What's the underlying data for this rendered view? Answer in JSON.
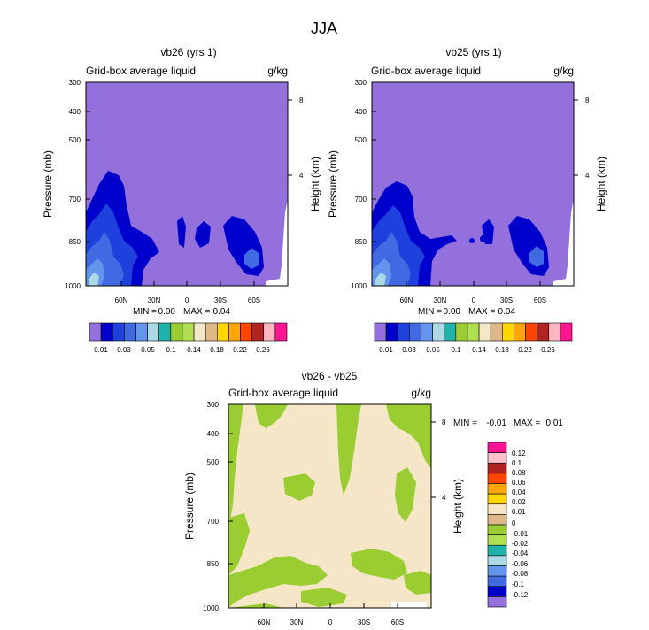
{
  "figure": {
    "title": "JJA"
  },
  "colors": {
    "fill_scale_panels": [
      "#9370DB",
      "#0000CD",
      "#1E41DD",
      "#4169E1",
      "#6495ED",
      "#ADD8E6",
      "#20B2AA",
      "#9ACD32",
      "#B0E050",
      "#F5E6C8",
      "#DEB887",
      "#FFD700",
      "#FFA500",
      "#FF4500",
      "#B22222",
      "#FFB6C1",
      "#FF1493"
    ],
    "plot_background": "#9370DB",
    "diff_background": "#F5E6C8",
    "diff_positive": "#9ACD32"
  },
  "panels": [
    {
      "title": "vb26 (yrs 1)",
      "left_label": "Grid-box average liquid",
      "right_label": "g/kg",
      "minmax": {
        "min_label": "MIN =",
        "min_value": "0.00",
        "max_label": "MAX =",
        "max_value": "0.04"
      }
    },
    {
      "title": "vb25 (yrs 1)",
      "left_label": "Grid-box average liquid",
      "right_label": "g/kg",
      "minmax": {
        "min_label": "MIN =",
        "min_value": "0.00",
        "max_label": "MAX =",
        "max_value": "0.04"
      }
    },
    {
      "title": "vb26 - vb25",
      "left_label": "Grid-box average liquid",
      "right_label": "g/kg",
      "minmax": {
        "min_label": "MIN =",
        "min_value": "-0.01",
        "max_label": "MAX =",
        "max_value": "0.01"
      }
    }
  ],
  "axes": {
    "ylabel": "Pressure (mb)",
    "y2label": "Height (km)",
    "pressure_ticks": [
      "300",
      "400",
      "500",
      "700",
      "850",
      "1000"
    ],
    "height_ticks": [
      "8",
      "4"
    ],
    "lat_ticks": [
      "60N",
      "30N",
      "0",
      "30S",
      "60S"
    ]
  },
  "colorbar_top": {
    "labels": [
      "0.01",
      "0.03",
      "0.05",
      "0.1",
      "0.14",
      "0.18",
      "0.22",
      "0.26"
    ]
  },
  "colorbar_diff": {
    "labels": [
      "0.12",
      "0.1",
      "0.08",
      "0.06",
      "0.04",
      "0.02",
      "0.01",
      "0",
      "-0.01",
      "-0.02",
      "-0.04",
      "-0.06",
      "-0.08",
      "-0.1",
      "-0.12"
    ],
    "colors": [
      "#FF1493",
      "#FFC0CB",
      "#B22222",
      "#FF4500",
      "#FFA500",
      "#FFD700",
      "#F5E6C8",
      "#DEB887",
      "#9ACD32",
      "#B0E050",
      "#20B2AA",
      "#ADD8E6",
      "#6495ED",
      "#4169E1",
      "#0000CD",
      "#9370DB"
    ]
  },
  "chart_data": [
    {
      "type": "heatmap",
      "title": "vb26 (yrs 1)",
      "subtitle_left": "Grid-box average liquid",
      "subtitle_right": "g/kg",
      "xlabel": "",
      "ylabel": "Pressure (mb)",
      "y2label": "Height (km)",
      "x_ticks": [
        "60N",
        "30N",
        "0",
        "30S",
        "60S"
      ],
      "y_ticks": [
        300,
        400,
        500,
        700,
        850,
        1000
      ],
      "y2_ticks": [
        8,
        4
      ],
      "levels": [
        0.01,
        0.03,
        0.05,
        0.1,
        0.14,
        0.18,
        0.22,
        0.26
      ],
      "min": 0.0,
      "max": 0.04
    },
    {
      "type": "heatmap",
      "title": "vb25 (yrs 1)",
      "subtitle_left": "Grid-box average liquid",
      "subtitle_right": "g/kg",
      "xlabel": "",
      "ylabel": "Pressure (mb)",
      "y2label": "Height (km)",
      "x_ticks": [
        "60N",
        "30N",
        "0",
        "30S",
        "60S"
      ],
      "y_ticks": [
        300,
        400,
        500,
        700,
        850,
        1000
      ],
      "y2_ticks": [
        8,
        4
      ],
      "levels": [
        0.01,
        0.03,
        0.05,
        0.1,
        0.14,
        0.18,
        0.22,
        0.26
      ],
      "min": 0.0,
      "max": 0.04
    },
    {
      "type": "heatmap",
      "title": "vb26 - vb25",
      "subtitle_left": "Grid-box average liquid",
      "subtitle_right": "g/kg",
      "xlabel": "",
      "ylabel": "Pressure (mb)",
      "y2label": "Height (km)",
      "x_ticks": [
        "60N",
        "30N",
        "0",
        "30S",
        "60S"
      ],
      "y_ticks": [
        300,
        400,
        500,
        700,
        850,
        1000
      ],
      "y2_ticks": [
        8,
        4
      ],
      "levels": [
        -0.12,
        -0.1,
        -0.08,
        -0.06,
        -0.04,
        -0.02,
        -0.01,
        0,
        0.01,
        0.02,
        0.04,
        0.06,
        0.08,
        0.1,
        0.12
      ],
      "min": -0.01,
      "max": 0.01
    }
  ]
}
